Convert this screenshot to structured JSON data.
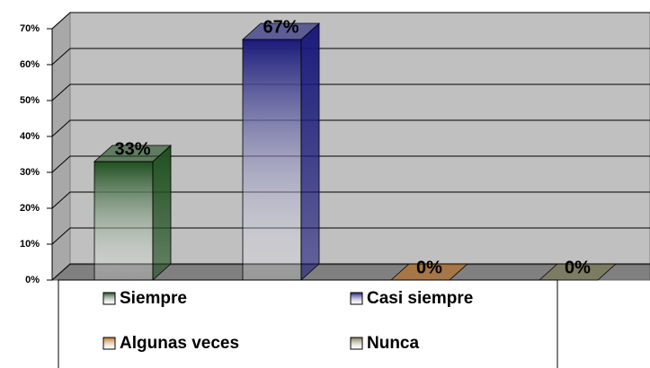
{
  "chart_data": {
    "type": "bar3d",
    "categories": [
      "Siempre",
      "Casi siempre",
      "Algunas veces",
      "Nunca"
    ],
    "values": [
      33,
      67,
      0,
      0
    ],
    "value_labels": [
      "33%",
      "67%",
      "0%",
      "0%"
    ],
    "colors": [
      "#1f4f1f",
      "#1a1a7a",
      "#c07020",
      "#7a7a50"
    ],
    "ylim": [
      0,
      70
    ],
    "yticks": [
      {
        "value": 0,
        "label": "0%"
      },
      {
        "value": 10,
        "label": "10%"
      },
      {
        "value": 20,
        "label": "20%"
      },
      {
        "value": 30,
        "label": "30%"
      },
      {
        "value": 40,
        "label": "40%"
      },
      {
        "value": 50,
        "label": "50%"
      },
      {
        "value": 60,
        "label": "60%"
      },
      {
        "value": 70,
        "label": "70%"
      }
    ],
    "grid": true
  }
}
